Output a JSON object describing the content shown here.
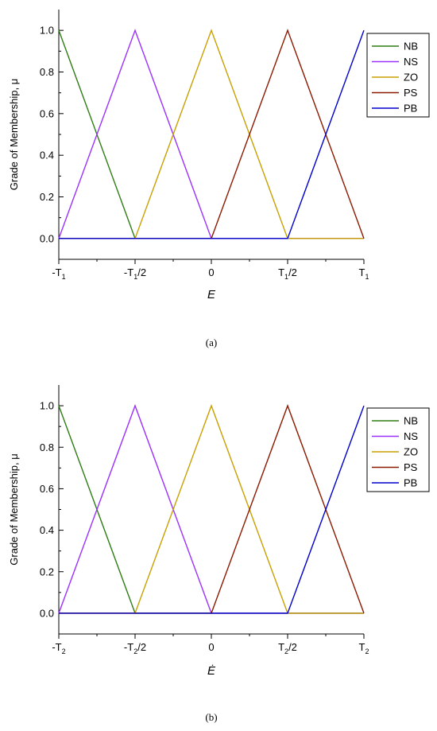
{
  "chart_data": [
    {
      "type": "line",
      "panel_caption": "(a)",
      "xlabel": "E",
      "ylabel": "Grade of Membership, μ",
      "xlim": [
        -1,
        1
      ],
      "ylim": [
        -0.1,
        1.1
      ],
      "x_ticks": [
        {
          "value": -1,
          "base": "-T",
          "sub": "1",
          "tail": ""
        },
        {
          "value": -0.5,
          "base": "-T",
          "sub": "1",
          "tail": "/2"
        },
        {
          "value": 0,
          "base": "0",
          "sub": "",
          "tail": ""
        },
        {
          "value": 0.5,
          "base": "T",
          "sub": "1",
          "tail": "/2"
        },
        {
          "value": 1,
          "base": "T",
          "sub": "1",
          "tail": ""
        }
      ],
      "x_minor_ticks": [
        -0.75,
        -0.25,
        0.25,
        0.75
      ],
      "y_ticks": [
        {
          "value": 0,
          "label": "0.0"
        },
        {
          "value": 0.2,
          "label": "0.2"
        },
        {
          "value": 0.4,
          "label": "0.4"
        },
        {
          "value": 0.6,
          "label": "0.6"
        },
        {
          "value": 0.8,
          "label": "0.8"
        },
        {
          "value": 1,
          "label": "1.0"
        }
      ],
      "y_minor_ticks": [
        0.1,
        0.3,
        0.5,
        0.7,
        0.9
      ],
      "legend_position": "top-right",
      "series": [
        {
          "name": "NB",
          "color": "#2e7d14",
          "x": [
            -1,
            -0.5,
            1
          ],
          "y": [
            1,
            0,
            0
          ]
        },
        {
          "name": "NS",
          "color": "#9b30ff",
          "x": [
            -1,
            -0.5,
            0,
            1
          ],
          "y": [
            0,
            1,
            0,
            0
          ]
        },
        {
          "name": "ZO",
          "color": "#c8a000",
          "x": [
            -1,
            -0.5,
            0,
            0.5,
            1
          ],
          "y": [
            0,
            0,
            1,
            0,
            0
          ]
        },
        {
          "name": "PS",
          "color": "#8b1a00",
          "x": [
            -1,
            0,
            0.5,
            1
          ],
          "y": [
            0,
            0,
            1,
            0
          ]
        },
        {
          "name": "PB",
          "color": "#0000cc",
          "x": [
            -1,
            0.5,
            1
          ],
          "y": [
            0,
            0,
            1
          ]
        }
      ]
    },
    {
      "type": "line",
      "panel_caption": "(b)",
      "xlabel": "Ė",
      "ylabel": "Grade of Membership, μ",
      "xlim": [
        -1,
        1
      ],
      "ylim": [
        -0.1,
        1.1
      ],
      "x_ticks": [
        {
          "value": -1,
          "base": "-T",
          "sub": "2",
          "tail": ""
        },
        {
          "value": -0.5,
          "base": "-T",
          "sub": "2",
          "tail": "/2"
        },
        {
          "value": 0,
          "base": "0",
          "sub": "",
          "tail": ""
        },
        {
          "value": 0.5,
          "base": "T",
          "sub": "2",
          "tail": "/2"
        },
        {
          "value": 1,
          "base": "T",
          "sub": "2",
          "tail": ""
        }
      ],
      "x_minor_ticks": [
        -0.75,
        -0.25,
        0.25,
        0.75
      ],
      "y_ticks": [
        {
          "value": 0,
          "label": "0.0"
        },
        {
          "value": 0.2,
          "label": "0.2"
        },
        {
          "value": 0.4,
          "label": "0.4"
        },
        {
          "value": 0.6,
          "label": "0.6"
        },
        {
          "value": 0.8,
          "label": "0.8"
        },
        {
          "value": 1,
          "label": "1.0"
        }
      ],
      "y_minor_ticks": [
        0.1,
        0.3,
        0.5,
        0.7,
        0.9
      ],
      "legend_position": "top-right",
      "series": [
        {
          "name": "NB",
          "color": "#2e7d14",
          "x": [
            -1,
            -0.5,
            1
          ],
          "y": [
            1,
            0,
            0
          ]
        },
        {
          "name": "NS",
          "color": "#9b30ff",
          "x": [
            -1,
            -0.5,
            0,
            1
          ],
          "y": [
            0,
            1,
            0,
            0
          ]
        },
        {
          "name": "ZO",
          "color": "#c8a000",
          "x": [
            -1,
            -0.5,
            0,
            0.5,
            1
          ],
          "y": [
            0,
            0,
            1,
            0,
            0
          ]
        },
        {
          "name": "PS",
          "color": "#8b1a00",
          "x": [
            -1,
            0,
            0.5,
            1
          ],
          "y": [
            0,
            0,
            1,
            0
          ]
        },
        {
          "name": "PB",
          "color": "#0000cc",
          "x": [
            -1,
            0.5,
            1
          ],
          "y": [
            0,
            0,
            1
          ]
        }
      ]
    }
  ]
}
